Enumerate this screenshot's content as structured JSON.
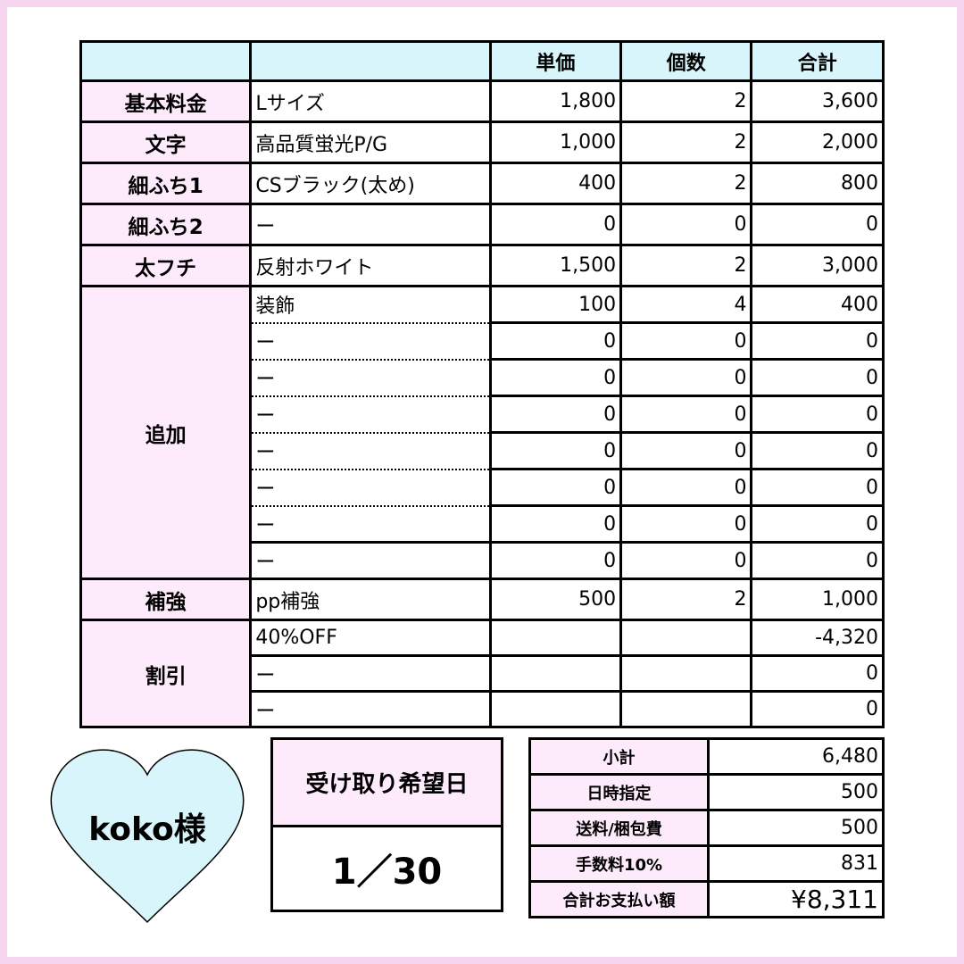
{
  "header": [
    "",
    "",
    "単価",
    "個数",
    "合計"
  ],
  "rows": [
    {
      "cat": "基本料金",
      "item": "Lサイズ",
      "price": "1,800",
      "qty": "2",
      "total": "3,600"
    },
    {
      "cat": "文字",
      "item": "高品質蛍光P/G",
      "price": "1,000",
      "qty": "2",
      "total": "2,000"
    },
    {
      "cat": "細ふち1",
      "item": "CSブラック(太め)",
      "price": "400",
      "qty": "2",
      "total": "800"
    },
    {
      "cat": "細ふち2",
      "item": "ー",
      "price": "0",
      "qty": "0",
      "total": "0"
    },
    {
      "cat": "太フチ",
      "item": "反射ホワイト",
      "price": "1,500",
      "qty": "2",
      "total": "3,000"
    }
  ],
  "additions": {
    "cat": "追加",
    "items": [
      {
        "item": "装飾",
        "price": "100",
        "qty": "4",
        "total": "400"
      },
      {
        "item": "ー",
        "price": "0",
        "qty": "0",
        "total": "0"
      },
      {
        "item": "ー",
        "price": "0",
        "qty": "0",
        "total": "0"
      },
      {
        "item": "ー",
        "price": "0",
        "qty": "0",
        "total": "0"
      },
      {
        "item": "ー",
        "price": "0",
        "qty": "0",
        "total": "0"
      },
      {
        "item": "ー",
        "price": "0",
        "qty": "0",
        "total": "0"
      },
      {
        "item": "ー",
        "price": "0",
        "qty": "0",
        "total": "0"
      },
      {
        "item": "ー",
        "price": "0",
        "qty": "0",
        "total": "0"
      }
    ]
  },
  "reinforce": {
    "cat": "補強",
    "item": "pp補強",
    "price": "500",
    "qty": "2",
    "total": "1,000"
  },
  "discount": {
    "cat": "割引",
    "items": [
      {
        "item": "40%OFF",
        "total": "-4,320"
      },
      {
        "item": "ー",
        "total": "0"
      },
      {
        "item": "ー",
        "total": "0"
      }
    ]
  },
  "customer": "koko様",
  "pickup": {
    "label": "受け取り希望日",
    "value": "1／30"
  },
  "summary": [
    {
      "label": "小計",
      "value": "6,480"
    },
    {
      "label": "日時指定",
      "value": "500"
    },
    {
      "label": "送料/梱包費",
      "value": "500"
    },
    {
      "label": "手数料10%",
      "value": "831"
    },
    {
      "label": "合計お支払い額",
      "value": "¥8,311"
    }
  ],
  "colors": {
    "header": "#d8f5fb",
    "category": "#fdeafa",
    "frame": "#f5d6ee",
    "heart": "#d8f5fb"
  }
}
